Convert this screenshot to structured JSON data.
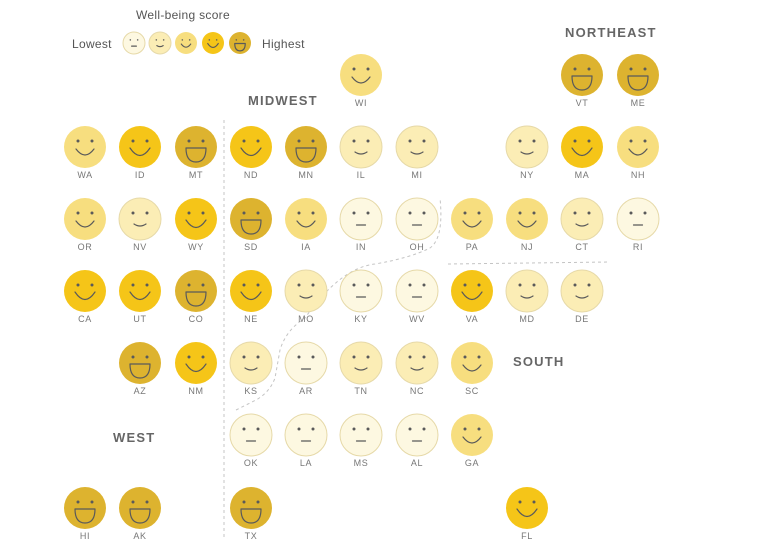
{
  "legend": {
    "title": "Well-being score",
    "low_label": "Lowest",
    "high_label": "Highest",
    "levels": [
      1,
      2,
      3,
      4,
      5
    ]
  },
  "regions": {
    "northeast": "NORTHEAST",
    "midwest": "MIDWEST",
    "south": "SOUTH",
    "west": "WEST"
  },
  "colors": {
    "level_1": "#FDF8E1",
    "level_2": "#FBEDB5",
    "level_3": "#F7DE7F",
    "level_4": "#F5C518",
    "level_5": "#DDB32F",
    "outline": "#E6D9A8",
    "feature": "#5a5a5a",
    "divider": "#c4c4c4"
  },
  "states": [
    {
      "abbr": "WI",
      "score": 3
    },
    {
      "abbr": "VT",
      "score": 5
    },
    {
      "abbr": "ME",
      "score": 5
    },
    {
      "abbr": "WA",
      "score": 3
    },
    {
      "abbr": "ID",
      "score": 4
    },
    {
      "abbr": "MT",
      "score": 5
    },
    {
      "abbr": "ND",
      "score": 4
    },
    {
      "abbr": "MN",
      "score": 5
    },
    {
      "abbr": "IL",
      "score": 2
    },
    {
      "abbr": "MI",
      "score": 2
    },
    {
      "abbr": "NY",
      "score": 2
    },
    {
      "abbr": "MA",
      "score": 4
    },
    {
      "abbr": "NH",
      "score": 3
    },
    {
      "abbr": "OR",
      "score": 3
    },
    {
      "abbr": "NV",
      "score": 2
    },
    {
      "abbr": "WY",
      "score": 4
    },
    {
      "abbr": "SD",
      "score": 5
    },
    {
      "abbr": "IA",
      "score": 3
    },
    {
      "abbr": "IN",
      "score": 1
    },
    {
      "abbr": "OH",
      "score": 1
    },
    {
      "abbr": "PA",
      "score": 3
    },
    {
      "abbr": "NJ",
      "score": 3
    },
    {
      "abbr": "CT",
      "score": 2
    },
    {
      "abbr": "RI",
      "score": 1
    },
    {
      "abbr": "CA",
      "score": 4
    },
    {
      "abbr": "UT",
      "score": 4
    },
    {
      "abbr": "CO",
      "score": 5
    },
    {
      "abbr": "NE",
      "score": 4
    },
    {
      "abbr": "MO",
      "score": 2
    },
    {
      "abbr": "KY",
      "score": 1
    },
    {
      "abbr": "WV",
      "score": 1
    },
    {
      "abbr": "VA",
      "score": 4
    },
    {
      "abbr": "MD",
      "score": 2
    },
    {
      "abbr": "DE",
      "score": 2
    },
    {
      "abbr": "AZ",
      "score": 5
    },
    {
      "abbr": "NM",
      "score": 4
    },
    {
      "abbr": "KS",
      "score": 2
    },
    {
      "abbr": "AR",
      "score": 1
    },
    {
      "abbr": "TN",
      "score": 2
    },
    {
      "abbr": "NC",
      "score": 2
    },
    {
      "abbr": "SC",
      "score": 3
    },
    {
      "abbr": "OK",
      "score": 1
    },
    {
      "abbr": "LA",
      "score": 1
    },
    {
      "abbr": "MS",
      "score": 1
    },
    {
      "abbr": "AL",
      "score": 1
    },
    {
      "abbr": "GA",
      "score": 3
    },
    {
      "abbr": "HI",
      "score": 5
    },
    {
      "abbr": "AK",
      "score": 5
    },
    {
      "abbr": "TX",
      "score": 5
    },
    {
      "abbr": "FL",
      "score": 4
    }
  ]
}
